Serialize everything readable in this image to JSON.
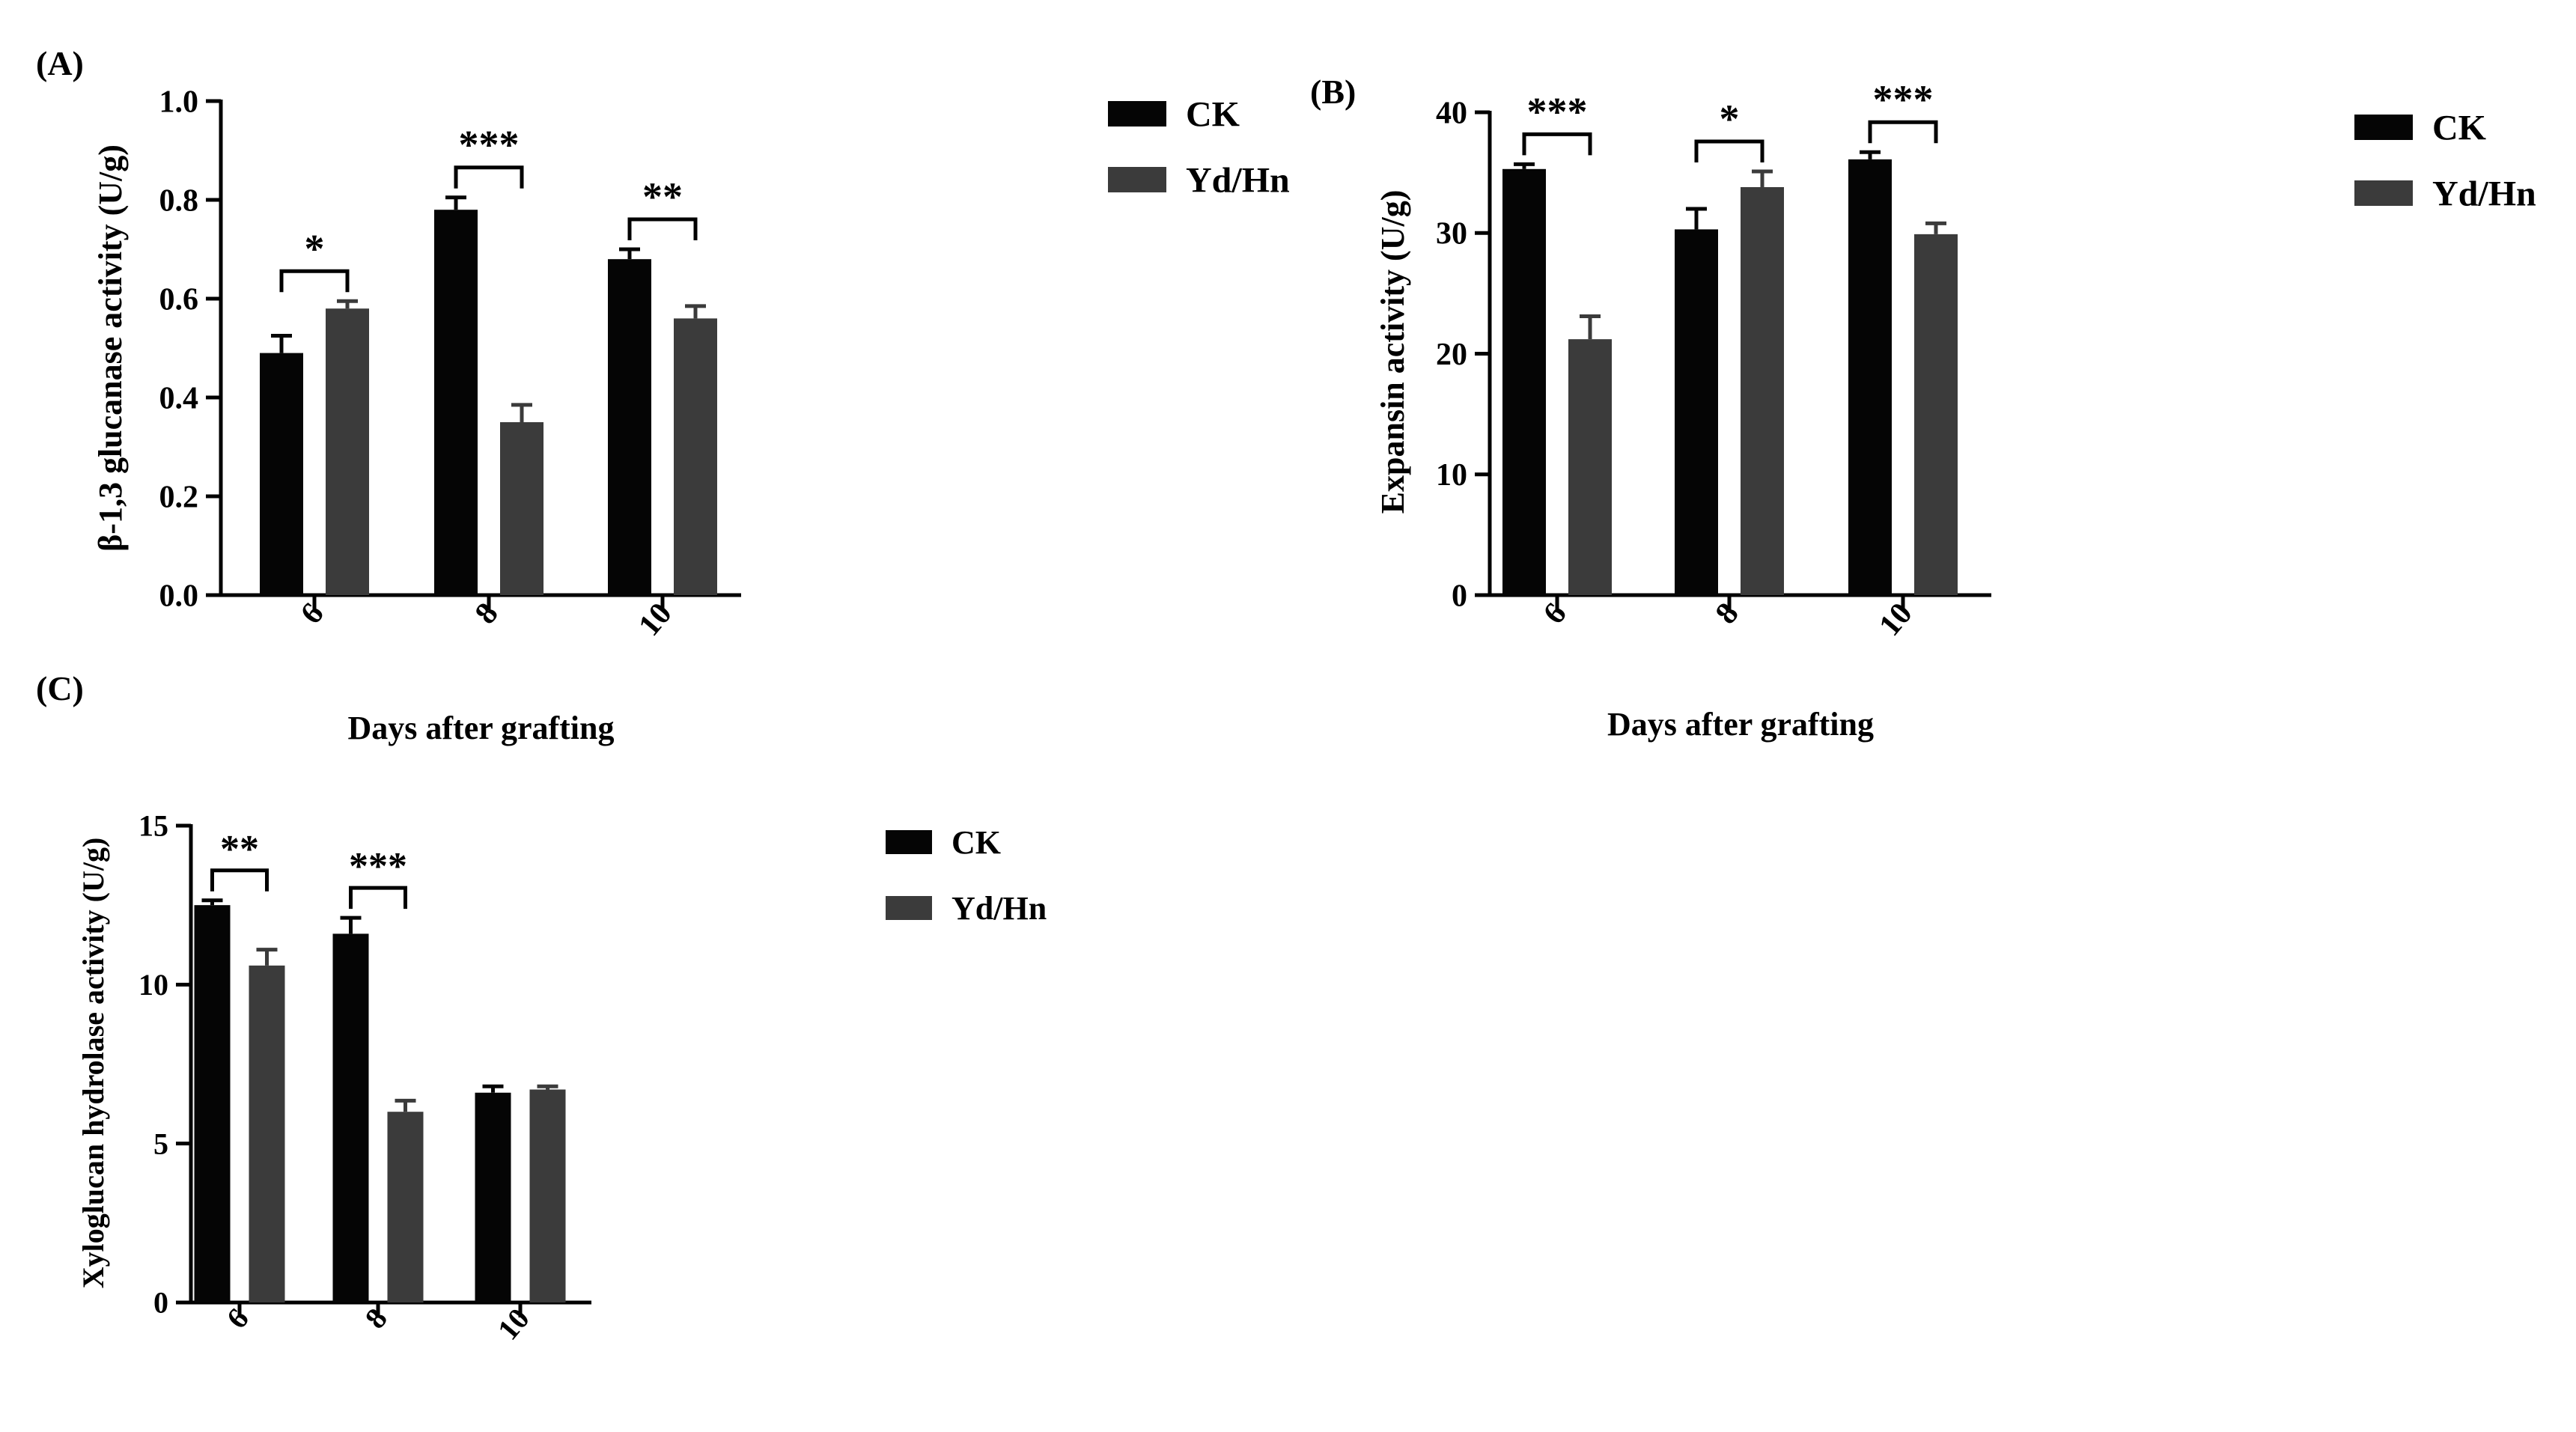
{
  "figure": {
    "background": "#ffffff",
    "colors": {
      "CK": "#050505",
      "Yd/Hn": "#3b3b3b"
    }
  },
  "chart_data": [
    {
      "panel_label": "(A)",
      "type": "bar",
      "categories": [
        "6",
        "8",
        "10"
      ],
      "series": [
        {
          "name": "CK",
          "values": [
            0.49,
            0.78,
            0.68
          ],
          "errors": [
            0.035,
            0.025,
            0.02
          ]
        },
        {
          "name": "Yd/Hn",
          "values": [
            0.58,
            0.35,
            0.56
          ],
          "errors": [
            0.015,
            0.035,
            0.025
          ]
        }
      ],
      "ylabel": "β-1,3 glucanase activity (U/g)",
      "xlabel": "Days after grafting",
      "ylim": [
        0,
        1.0
      ],
      "yticks": [
        "0.0",
        "0.2",
        "0.4",
        "0.6",
        "0.8",
        "1.0"
      ],
      "significance": [
        "*",
        "***",
        "**"
      ],
      "legend": [
        "CK",
        "Yd/Hn"
      ],
      "legend_position": "right"
    },
    {
      "panel_label": "(B)",
      "type": "bar",
      "categories": [
        "6",
        "8",
        "10"
      ],
      "series": [
        {
          "name": "CK",
          "values": [
            35.3,
            30.3,
            36.1
          ],
          "errors": [
            0.4,
            1.7,
            0.6
          ]
        },
        {
          "name": "Yd/Hn",
          "values": [
            21.2,
            33.8,
            29.9
          ],
          "errors": [
            1.9,
            1.3,
            0.9
          ]
        }
      ],
      "ylabel": "Expansin activity (U/g)",
      "xlabel": "Days after grafting",
      "ylim": [
        0,
        40
      ],
      "yticks": [
        "0",
        "10",
        "20",
        "30",
        "40"
      ],
      "significance": [
        "***",
        "*",
        "***"
      ],
      "legend": [
        "CK",
        "Yd/Hn"
      ],
      "legend_position": "right"
    },
    {
      "panel_label": "(C)",
      "type": "bar",
      "categories": [
        "6",
        "8",
        "10"
      ],
      "series": [
        {
          "name": "CK",
          "values": [
            12.5,
            11.6,
            6.6
          ],
          "errors": [
            0.15,
            0.5,
            0.2
          ]
        },
        {
          "name": "Yd/Hn",
          "values": [
            10.6,
            6.0,
            6.7
          ],
          "errors": [
            0.5,
            0.35,
            0.1
          ]
        }
      ],
      "ylabel": "Xyloglucan hydrolase activity (U/g)",
      "xlabel": "",
      "ylim": [
        0,
        15
      ],
      "yticks": [
        "0",
        "5",
        "10",
        "15"
      ],
      "significance": [
        "**",
        "***",
        ""
      ],
      "legend": [
        "CK",
        "Yd/Hn"
      ],
      "legend_position": "right"
    }
  ]
}
